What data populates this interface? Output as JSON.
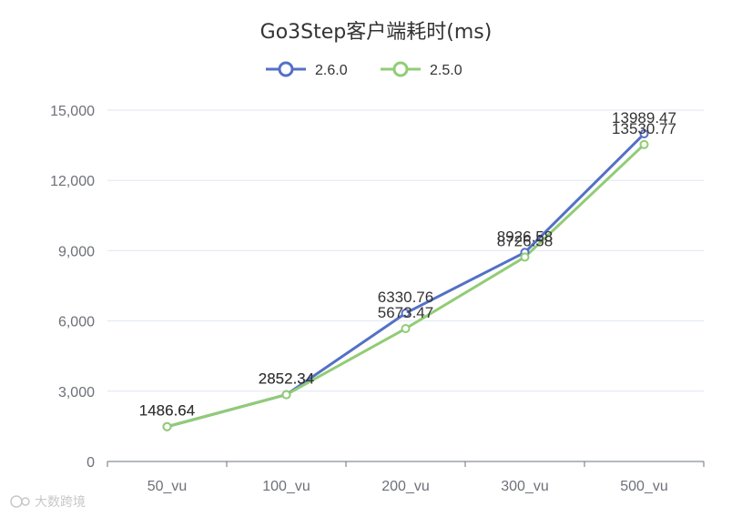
{
  "chart_data": {
    "type": "line",
    "title": "Go3Step客户端耗时(ms)",
    "categories": [
      "50_vu",
      "100_vu",
      "200_vu",
      "300_vu",
      "500_vu"
    ],
    "ylim": [
      0,
      15000
    ],
    "yticks": [
      0,
      3000,
      6000,
      9000,
      12000,
      15000
    ],
    "ytick_labels": [
      "0",
      "3,000",
      "6,000",
      "9,000",
      "12,000",
      "15,000"
    ],
    "grid": true,
    "legend_position": "top-center",
    "series": [
      {
        "name": "2.6.0",
        "color": "#5470c6",
        "values": [
          1486.64,
          2852.34,
          6330.76,
          8926.58,
          13989.47
        ],
        "labels": [
          "1486.64",
          "2852.34",
          "6330.76",
          "8926.58",
          "13989.47"
        ]
      },
      {
        "name": "2.5.0",
        "color": "#91cc75",
        "values": [
          1486.64,
          2852.34,
          5673.47,
          8726.58,
          13530.77
        ],
        "labels": [
          "1486.64",
          "2852.34",
          "5673.47",
          "8726.58",
          "13530.77"
        ]
      }
    ]
  },
  "watermark": {
    "text": "大数跨境"
  }
}
